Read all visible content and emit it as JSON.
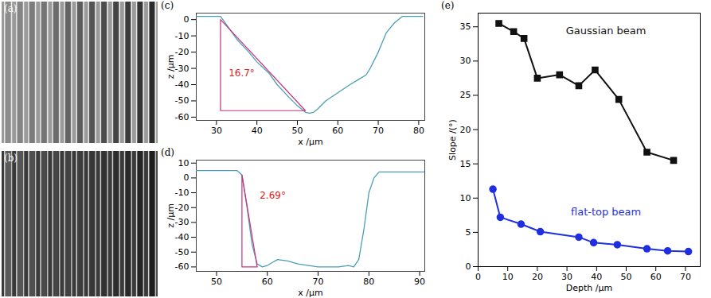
{
  "chart_data": [
    {
      "type": "image",
      "title": "(a)"
    },
    {
      "type": "image",
      "title": "(b)"
    },
    {
      "type": "line",
      "title": "(c)",
      "x": [
        25,
        28,
        31,
        33,
        35,
        38,
        40,
        43,
        45,
        48,
        50,
        52,
        53,
        54,
        55,
        57,
        60,
        63,
        65,
        67,
        68,
        70,
        72,
        74,
        76,
        78,
        81
      ],
      "values": [
        2,
        2,
        2,
        -5,
        -12,
        -20,
        -26,
        -33,
        -40,
        -48,
        -53,
        -57,
        -57.5,
        -57,
        -55,
        -50,
        -45,
        -40,
        -37,
        -34,
        -30,
        -20,
        -8,
        -2,
        2,
        2,
        2
      ],
      "color": "#4a9fb5",
      "xlabel": "x /μm",
      "ylabel": "z /μm",
      "xlim": [
        25,
        81.5
      ],
      "xticks": [
        30,
        40,
        50,
        60,
        70,
        80
      ],
      "ylim": [
        -62,
        4
      ],
      "yticks": [
        0,
        -10,
        -20,
        -30,
        -40,
        -50,
        -60
      ],
      "guide_lines": [
        {
          "x": [
            31,
            31,
            52,
            31
          ],
          "y": [
            0,
            -56,
            -56,
            0
          ],
          "color": "#c8327c"
        }
      ],
      "annotations": [
        {
          "text": "16.7°",
          "x": 33,
          "y": -33,
          "color": "#e0201b"
        }
      ]
    },
    {
      "type": "line",
      "title": "(d)",
      "x": [
        46,
        50,
        54,
        55,
        56,
        57,
        58,
        59,
        60,
        61,
        62,
        64,
        66,
        70,
        74,
        76,
        77,
        78,
        79,
        80,
        81,
        82,
        86,
        91
      ],
      "values": [
        5,
        5,
        5,
        2,
        -20,
        -45,
        -58,
        -60,
        -59,
        -57,
        -55,
        -56,
        -58,
        -60,
        -60,
        -59,
        -60,
        -55,
        -35,
        -10,
        0,
        4,
        4,
        4
      ],
      "color": "#4a9fb5",
      "xlabel": "x /μm",
      "ylabel": "z /μm",
      "xlim": [
        46,
        91
      ],
      "xticks": [
        50,
        60,
        70,
        80,
        90
      ],
      "ylim": [
        -63,
        12
      ],
      "yticks": [
        10,
        0,
        -10,
        -20,
        -30,
        -40,
        -50,
        -60
      ],
      "guide_lines": [
        {
          "x": [
            55,
            55,
            58,
            55
          ],
          "y": [
            2,
            -60,
            -60,
            2
          ],
          "color": "#c8327c"
        }
      ],
      "annotations": [
        {
          "text": "2.69°",
          "x": 58.5,
          "y": -12,
          "color": "#e0201b"
        }
      ]
    },
    {
      "type": "line",
      "title": "(e)",
      "xlabel": "Depth /μm",
      "ylabel": "Slope /(°)",
      "xlim": [
        0,
        75
      ],
      "xticks": [
        0,
        10,
        20,
        30,
        40,
        50,
        60,
        70
      ],
      "ylim": [
        0,
        37
      ],
      "yticks": [
        0,
        5,
        10,
        15,
        20,
        25,
        30,
        35
      ],
      "series": [
        {
          "name": "Gaussian beam",
          "color": "#111111",
          "marker": "square",
          "x": [
            7,
            12,
            15.5,
            20,
            27.5,
            34,
            39.5,
            47.5,
            57,
            66
          ],
          "values": [
            35.5,
            34.3,
            33.3,
            27.5,
            28,
            26.4,
            28.7,
            24.4,
            16.7,
            15.5
          ]
        },
        {
          "name": "flat-top beam",
          "color": "#1f2fe0",
          "marker": "circle",
          "x": [
            5,
            7.5,
            14.5,
            21,
            34,
            39,
            47,
            57,
            64,
            71
          ],
          "values": [
            11.3,
            7.2,
            6.2,
            5.1,
            4.3,
            3.5,
            3.2,
            2.6,
            2.3,
            2.2
          ]
        }
      ]
    }
  ]
}
